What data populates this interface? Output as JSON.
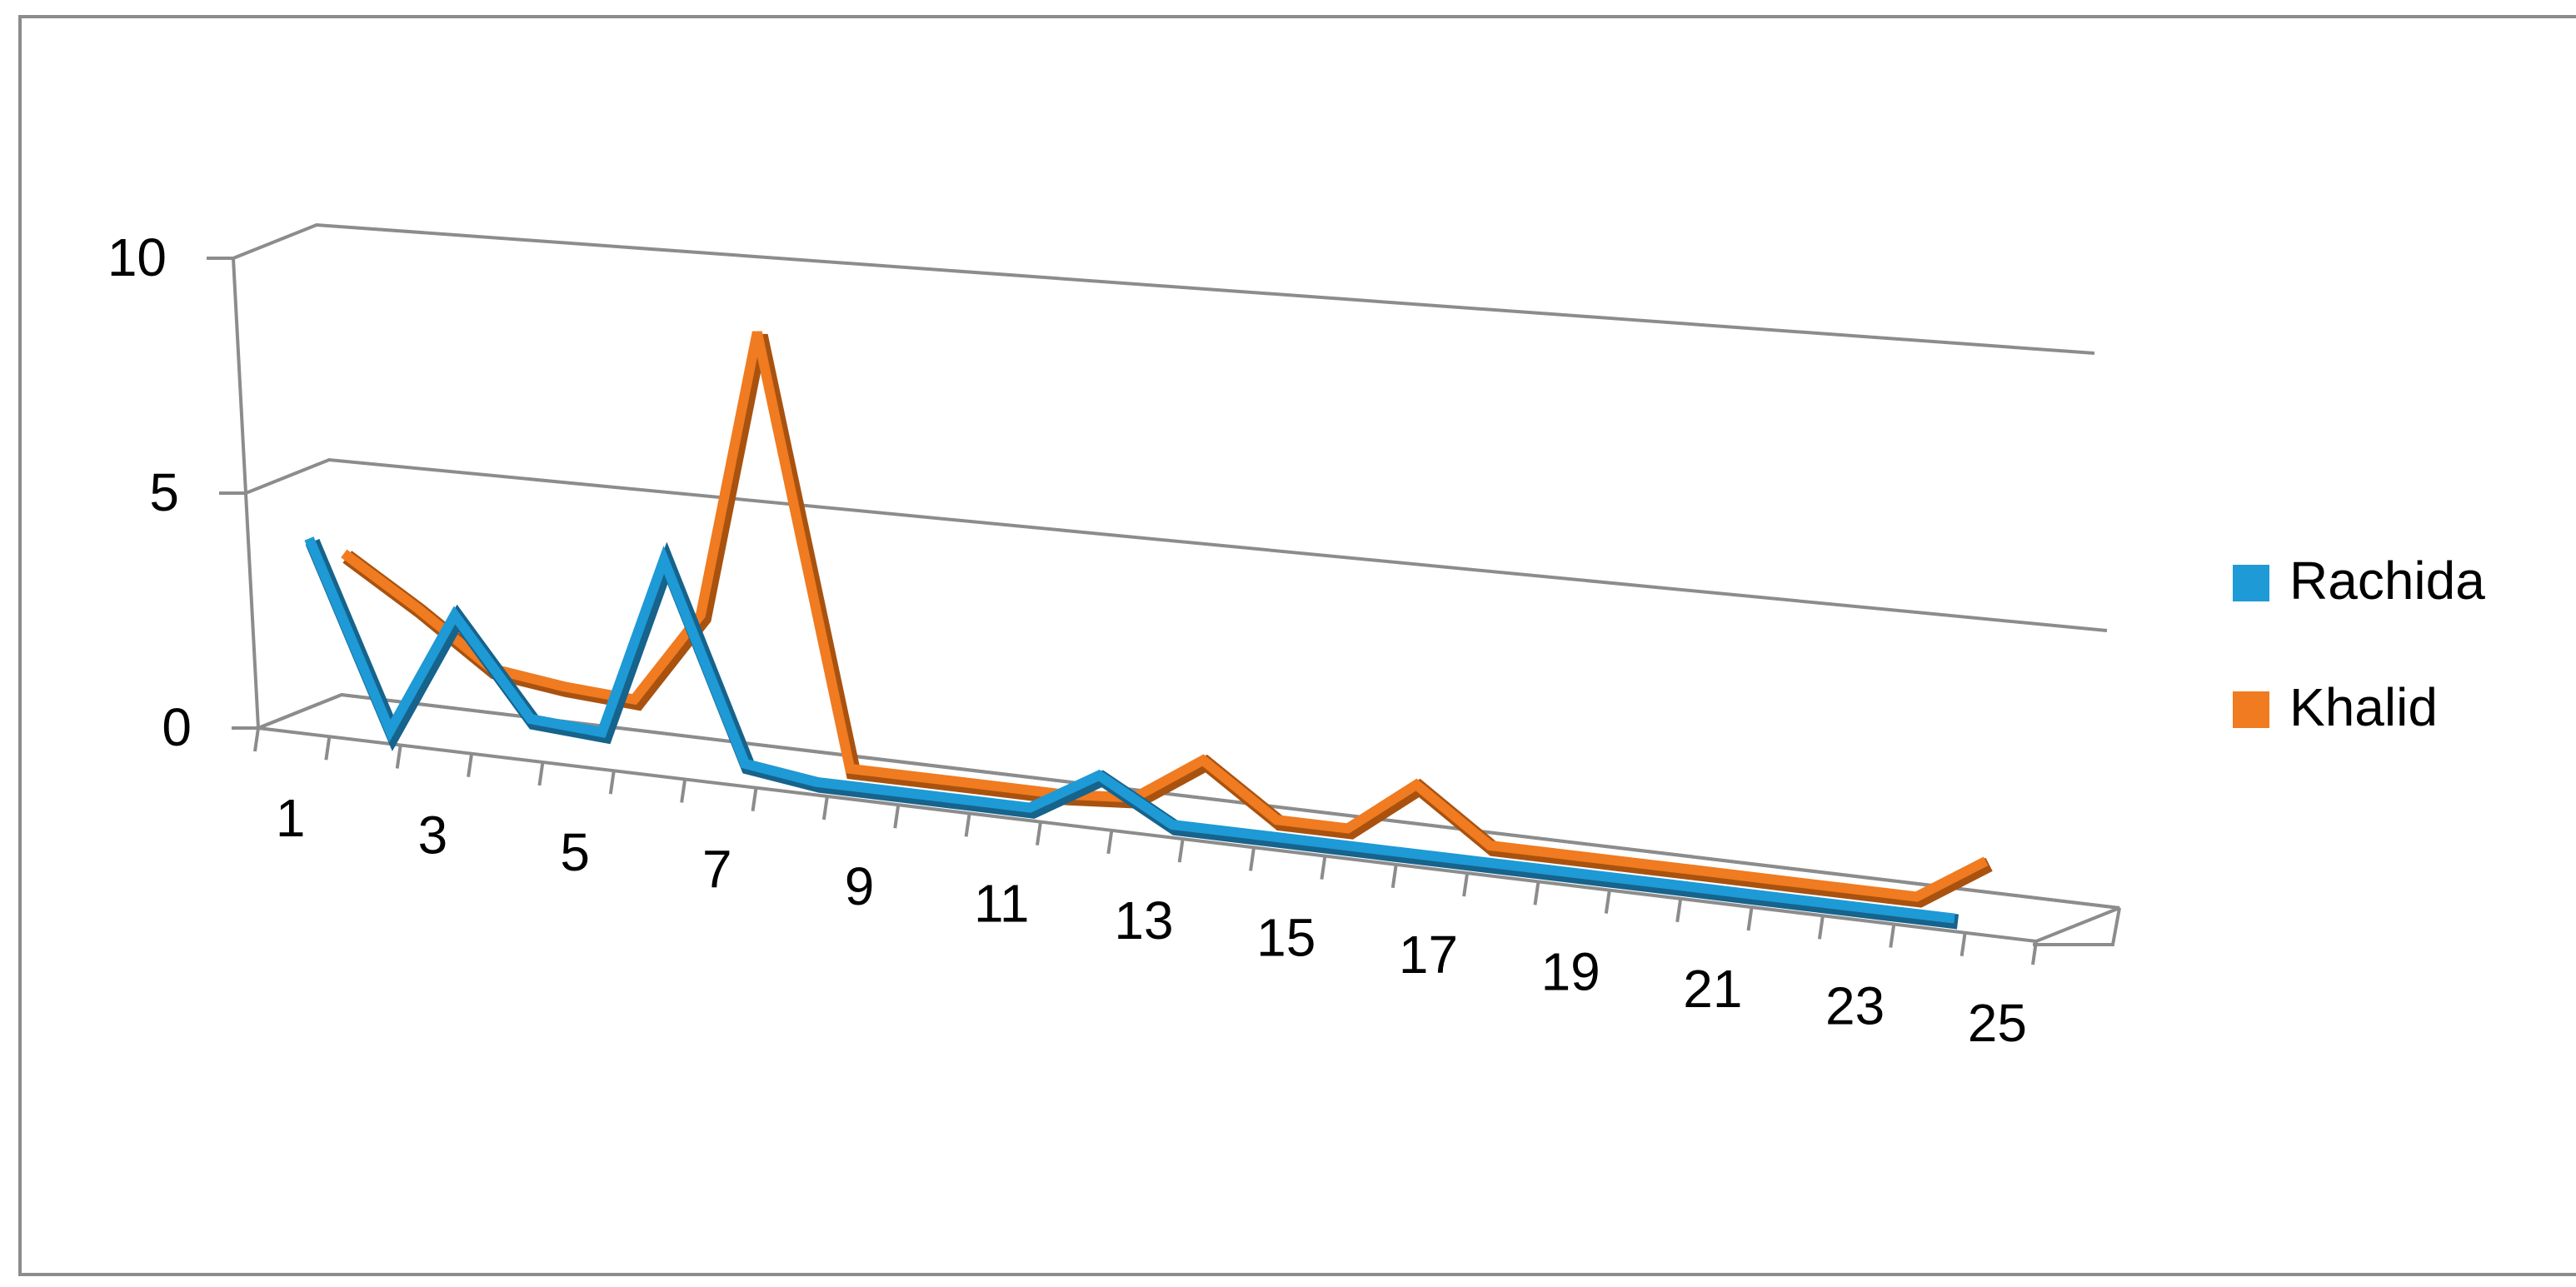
{
  "chart_data": {
    "type": "line3d",
    "categories": [
      "1",
      null,
      "3",
      null,
      "5",
      null,
      "7",
      null,
      "9",
      null,
      "11",
      null,
      "13",
      null,
      "15",
      null,
      "17",
      null,
      "19",
      null,
      "21",
      null,
      "23",
      null,
      "25"
    ],
    "series": [
      {
        "name": "Rachida",
        "color": "#1e9ad6",
        "values": [
          3.9,
          0,
          2.6,
          0.6,
          0.5,
          4.2,
          0.2,
          0,
          0,
          0,
          0,
          0.8,
          0,
          0,
          0,
          0,
          0,
          0,
          0,
          0,
          0,
          0,
          0,
          0,
          null
        ]
      },
      {
        "name": "Khalid",
        "color": "#f07b20",
        "values": [
          3.3,
          2.3,
          1.2,
          1.0,
          0.9,
          2.8,
          8.7,
          0,
          0,
          0,
          0,
          0.1,
          1.0,
          0,
          0,
          1.0,
          0,
          0,
          0,
          0,
          0,
          0,
          0,
          0.8,
          null
        ]
      }
    ],
    "ylim": [
      0,
      10
    ],
    "yticks": [
      0,
      5,
      10
    ],
    "grid": true,
    "legend": "right"
  }
}
